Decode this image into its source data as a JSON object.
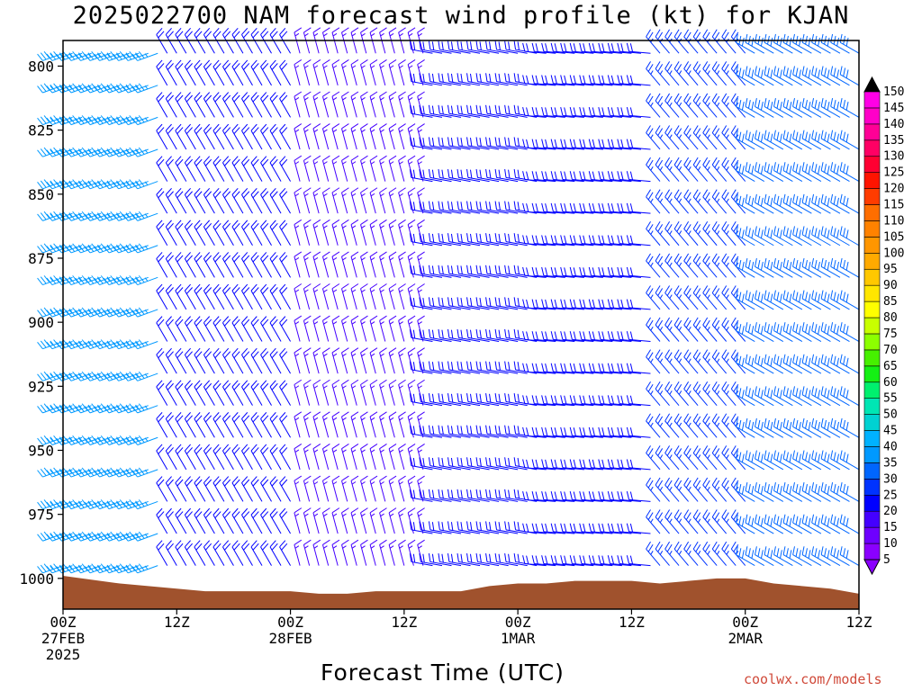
{
  "chart_data": {
    "type": "wind-barb time-height profile",
    "title": "2025022700 NAM forecast wind profile (kt) for KJAN",
    "xlabel": "Forecast Time (UTC)",
    "ylabel": "",
    "units": "kt",
    "y_axis": {
      "quantity": "pressure (hPa)",
      "inverted": true,
      "range": [
        790,
        1012
      ],
      "ticks": [
        800,
        825,
        850,
        875,
        900,
        925,
        950,
        975,
        1000
      ]
    },
    "x_axis": {
      "range_hours": [
        0,
        84
      ],
      "ticks": [
        {
          "hour": 0,
          "label": [
            "00Z",
            "27FEB",
            "2025"
          ]
        },
        {
          "hour": 12,
          "label": [
            "12Z"
          ]
        },
        {
          "hour": 24,
          "label": [
            "00Z",
            "28FEB"
          ]
        },
        {
          "hour": 36,
          "label": [
            "12Z"
          ]
        },
        {
          "hour": 48,
          "label": [
            "00Z",
            "1MAR"
          ]
        },
        {
          "hour": 60,
          "label": [
            "12Z"
          ]
        },
        {
          "hour": 72,
          "label": [
            "00Z",
            "2MAR"
          ]
        },
        {
          "hour": 84,
          "label": [
            "12Z"
          ]
        }
      ]
    },
    "surface_pressure": {
      "hours": [
        0,
        6,
        12,
        15,
        18,
        21,
        24,
        27,
        30,
        33,
        36,
        39,
        42,
        45,
        48,
        51,
        54,
        57,
        60,
        63,
        66,
        69,
        72,
        75,
        78,
        81,
        84
      ],
      "hPa": [
        999,
        1002,
        1004,
        1005,
        1005,
        1005,
        1005,
        1006,
        1006,
        1005,
        1005,
        1005,
        1005,
        1003,
        1002,
        1002,
        1001,
        1001,
        1001,
        1002,
        1001,
        1000,
        1000,
        1002,
        1003,
        1004,
        1006
      ]
    },
    "wind_regimes": [
      {
        "hours": [
          0,
          10
        ],
        "levels": [
          800,
          1000
        ],
        "direction_deg": 250,
        "speed_kt": 35
      },
      {
        "hours": [
          10,
          24
        ],
        "levels": [
          800,
          1000
        ],
        "direction_deg": 330,
        "speed_kt": 20
      },
      {
        "hours": [
          24,
          38
        ],
        "levels": [
          800,
          1000
        ],
        "direction_deg": 345,
        "speed_kt": 15
      },
      {
        "hours": [
          38,
          50
        ],
        "levels": [
          800,
          1000
        ],
        "direction_deg": 280,
        "speed_kt": 20
      },
      {
        "hours": [
          50,
          62
        ],
        "levels": [
          800,
          1000
        ],
        "direction_deg": 275,
        "speed_kt": 20
      },
      {
        "hours": [
          62,
          72
        ],
        "levels": [
          800,
          1000
        ],
        "direction_deg": 320,
        "speed_kt": 25
      },
      {
        "hours": [
          72,
          84
        ],
        "levels": [
          800,
          1000
        ],
        "direction_deg": 300,
        "speed_kt": 30
      }
    ],
    "colorbar": {
      "values": [
        5,
        10,
        15,
        20,
        25,
        30,
        35,
        40,
        45,
        50,
        55,
        60,
        65,
        70,
        75,
        80,
        85,
        90,
        95,
        100,
        105,
        110,
        115,
        120,
        125,
        130,
        135,
        140,
        145,
        150
      ],
      "colors": [
        "#8a00ff",
        "#6e00ff",
        "#4400ff",
        "#0000ff",
        "#0033ff",
        "#0066ff",
        "#0099ff",
        "#00b2ff",
        "#00d2d2",
        "#00e6b4",
        "#00f06e",
        "#14f014",
        "#46f000",
        "#8cff00",
        "#c8ff00",
        "#ffff00",
        "#ffe600",
        "#ffc800",
        "#ffaa00",
        "#ff9600",
        "#ff8200",
        "#ff6e00",
        "#ff3c00",
        "#ff1400",
        "#ff0032",
        "#ff0064",
        "#ff0096",
        "#ff00c8",
        "#ff00e6",
        "#ff00ff"
      ]
    }
  },
  "credit": "coolwx.com/models",
  "colors": {
    "terrain": "#a0522d",
    "background": "#ffffff",
    "axis": "#000000",
    "credit": "#d04a3a"
  }
}
